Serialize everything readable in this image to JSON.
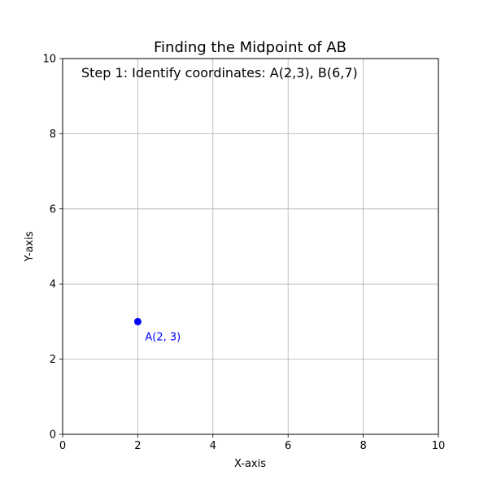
{
  "chart_data": {
    "type": "scatter",
    "title": "Finding the Midpoint of AB",
    "annotation": "Step 1: Identify coordinates: A(2,3), B(6,7)",
    "xlabel": "X-axis",
    "ylabel": "Y-axis",
    "xlim": [
      0,
      10
    ],
    "ylim": [
      0,
      10
    ],
    "xticks": [
      0,
      2,
      4,
      6,
      8,
      10
    ],
    "yticks": [
      0,
      2,
      4,
      6,
      8,
      10
    ],
    "grid": true,
    "points": [
      {
        "name": "A",
        "x": 2,
        "y": 3,
        "label": "A(2, 3)",
        "color": "#0000ff"
      }
    ]
  }
}
